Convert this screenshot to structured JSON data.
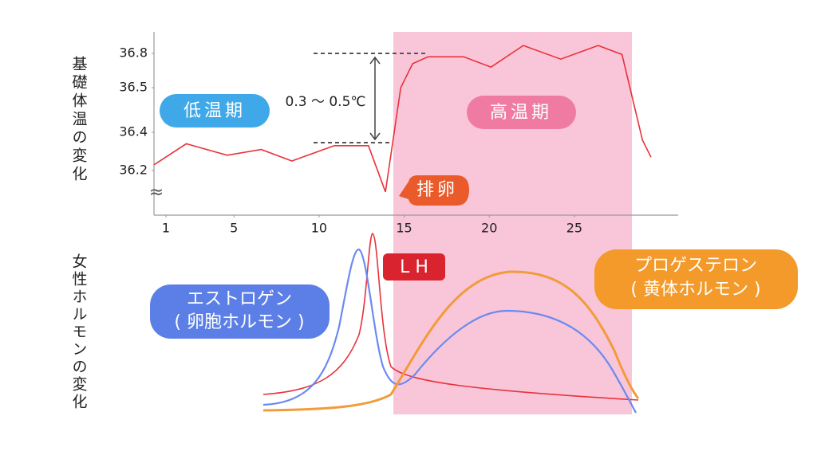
{
  "chart_data": {
    "type": "line",
    "y_title": "基礎体温の変化",
    "hormone_title": "女性ホルモンの変化",
    "x": [
      0.3,
      2.2,
      4.6,
      6.6,
      8.4,
      10.9,
      12.9,
      13.9,
      14.8,
      15.5,
      16.4,
      18.5,
      20.1,
      22.0,
      24.2,
      26.4,
      27.8,
      29.0,
      29.5
    ],
    "values": [
      36.23,
      36.34,
      36.28,
      36.31,
      36.25,
      36.33,
      36.33,
      36.09,
      36.5,
      36.71,
      36.77,
      36.77,
      36.68,
      36.87,
      36.75,
      36.87,
      36.79,
      36.36,
      36.27
    ],
    "color": "#e8323a",
    "xlim": [
      0.3,
      31.1
    ],
    "xticks": [
      1,
      5,
      10,
      15,
      20,
      25
    ],
    "ylim": [
      35.97,
      36.99
    ],
    "yticks": [
      36.2,
      36.4,
      36.5,
      36.8
    ],
    "axis_break": "≈",
    "annotations": {
      "low": "低温期",
      "high": "高温期",
      "range": "0.3 〜 0.5℃",
      "ovulation": "排卵",
      "lh": "L H",
      "estrogen": [
        "エストロゲン",
        "( 卵胞ホルモン )"
      ],
      "progesterone": [
        "プロゲステロン",
        "( 黄体ホルモン )"
      ]
    }
  }
}
